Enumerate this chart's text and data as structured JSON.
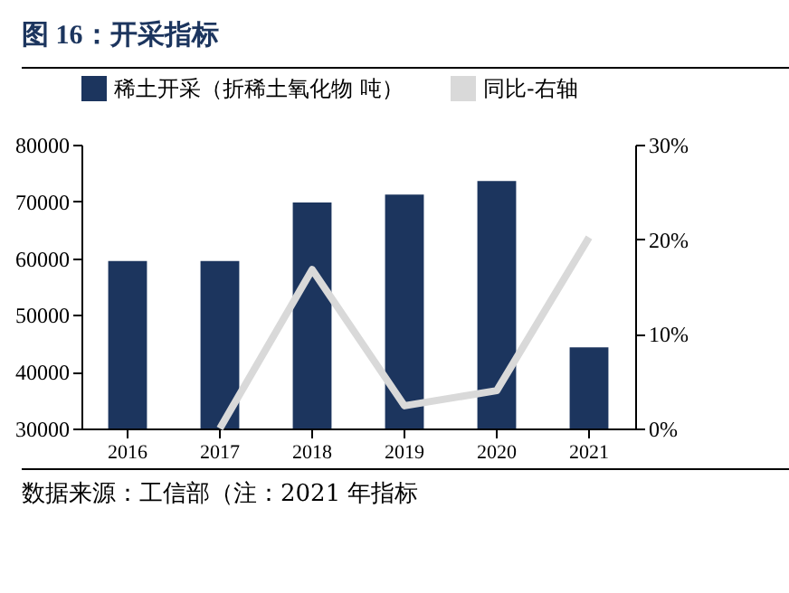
{
  "chart_data": {
    "type": "bar",
    "title": "图 16：开采指标",
    "categories": [
      "2016",
      "2017",
      "2018",
      "2019",
      "2020",
      "2021"
    ],
    "series": [
      {
        "name": "稀土开采（折稀土氧化物 吨）",
        "color": "#1c355e",
        "values": [
          59500,
          59500,
          69800,
          71200,
          73600,
          44300
        ]
      },
      {
        "name": "同比-右轴",
        "type": "line",
        "axis": "y2",
        "color": "#d9d9d9",
        "values": [
          null,
          0,
          16.8,
          2.4,
          4.0,
          20.2
        ]
      }
    ],
    "ylim": [
      30000,
      80000
    ],
    "yticks": [
      30000,
      40000,
      50000,
      60000,
      70000,
      80000
    ],
    "y2lim": [
      0,
      30
    ],
    "y2ticks": [
      {
        "value": 0,
        "label": "0%"
      },
      {
        "value": 10,
        "label": "10%"
      },
      {
        "value": 20,
        "label": "20%"
      },
      {
        "value": 30,
        "label": "30%"
      }
    ],
    "grid": false,
    "legend": "top",
    "annotations": [
      "数据来源：工信部（注：2021 年指标"
    ]
  }
}
